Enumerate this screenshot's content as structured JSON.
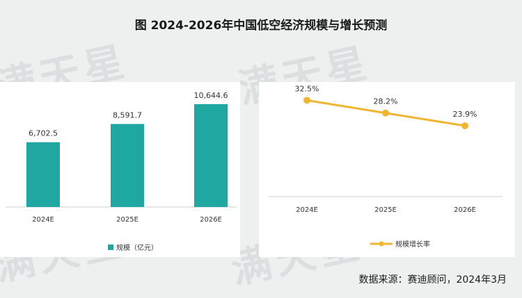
{
  "title": "图  2024-2026年中国低空经济规模与增长预测",
  "watermark": "满天星",
  "source": "数据来源：赛迪顾问，2024年3月",
  "colors": {
    "bar": "#1fa7a2",
    "line": "#f2b531",
    "axis": "#cfcfcf"
  },
  "chart_data": [
    {
      "type": "bar",
      "categories": [
        "2024E",
        "2025E",
        "2026E"
      ],
      "values": [
        6702.5,
        8591.7,
        10644.6
      ],
      "labels": [
        "6,702.5",
        "8,591.7",
        "10,644.6"
      ],
      "ylim": [
        0,
        11500
      ],
      "legend": "规模（亿元）",
      "legend_position": "bottom",
      "grid": false
    },
    {
      "type": "line",
      "categories": [
        "2024E",
        "2025E",
        "2026E"
      ],
      "values": [
        32.5,
        28.2,
        23.9
      ],
      "labels": [
        "32.5%",
        "28.2%",
        "23.9%"
      ],
      "ylim": [
        0,
        34
      ],
      "legend": "规模增长率",
      "legend_position": "bottom",
      "grid": false
    }
  ]
}
